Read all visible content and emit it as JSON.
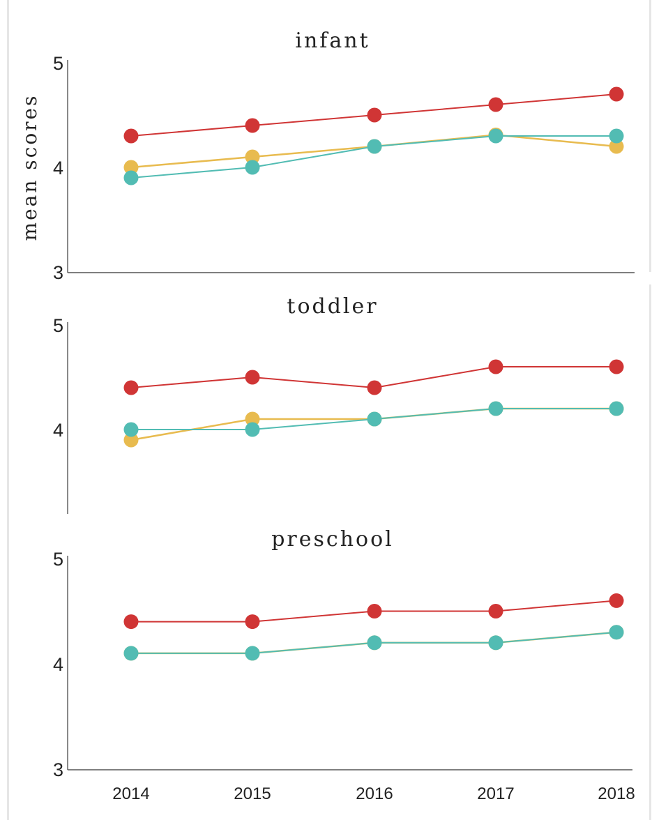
{
  "colors": {
    "red": "#d03535",
    "yellow": "#e8bb4f",
    "teal": "#52bcb3"
  },
  "chart_data": [
    {
      "type": "line",
      "title": "infant",
      "ylabel": "mean scores",
      "x": [
        "2014",
        "2015",
        "2016",
        "2017",
        "2018"
      ],
      "ylim": [
        3,
        5
      ],
      "yticks": [
        "3",
        "4",
        "5"
      ],
      "series": [
        {
          "color": "#d03535",
          "values": [
            4.3,
            4.4,
            4.5,
            4.6,
            4.7
          ]
        },
        {
          "color": "#e8bb4f",
          "values": [
            4.0,
            4.1,
            4.2,
            4.31,
            4.2
          ]
        },
        {
          "color": "#52bcb3",
          "values": [
            3.9,
            4.0,
            4.2,
            4.3,
            4.3
          ]
        }
      ]
    },
    {
      "type": "line",
      "title": "toddler",
      "x": [
        "2014",
        "2015",
        "2016",
        "2017",
        "2018"
      ],
      "ylim": [
        3,
        5
      ],
      "yticks": [
        "4",
        "5"
      ],
      "series": [
        {
          "color": "#d03535",
          "values": [
            4.4,
            4.5,
            4.4,
            4.6,
            4.6
          ]
        },
        {
          "color": "#e8bb4f",
          "values": [
            3.9,
            4.1,
            4.1,
            4.2,
            4.2
          ]
        },
        {
          "color": "#52bcb3",
          "values": [
            4.0,
            4.0,
            4.1,
            4.2,
            4.2
          ]
        }
      ]
    },
    {
      "type": "line",
      "title": "preschool",
      "x": [
        "2014",
        "2015",
        "2016",
        "2017",
        "2018"
      ],
      "xticks": [
        "2014",
        "2015",
        "2016",
        "2017",
        "2018"
      ],
      "ylim": [
        3,
        5
      ],
      "yticks": [
        "3",
        "4",
        "5"
      ],
      "series": [
        {
          "color": "#d03535",
          "values": [
            4.4,
            4.4,
            4.5,
            4.5,
            4.6
          ]
        },
        {
          "color": "#e8bb4f",
          "values": [
            4.1,
            4.1,
            4.2,
            4.2,
            4.3
          ]
        },
        {
          "color": "#52bcb3",
          "values": [
            4.1,
            4.1,
            4.2,
            4.2,
            4.3
          ]
        }
      ]
    }
  ]
}
